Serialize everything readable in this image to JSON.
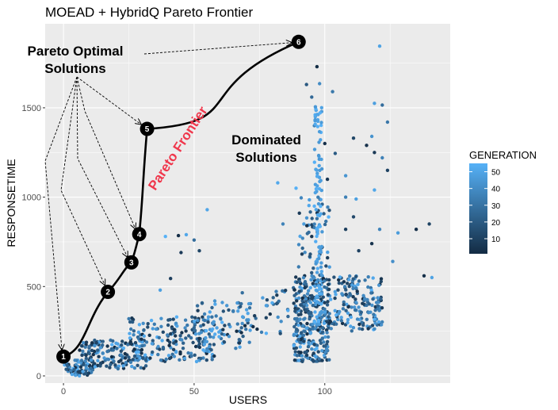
{
  "chart_data": {
    "type": "scatter",
    "title": "MOEAD + HybridQ Pareto Frontier",
    "xlabel": "USERS",
    "ylabel": "RESPONSETIME",
    "xlim": [
      -7,
      148
    ],
    "ylim": [
      -40,
      1970
    ],
    "x_ticks": [
      0,
      50,
      100
    ],
    "y_ticks": [
      0,
      500,
      1000,
      1500
    ],
    "grid": true,
    "legend": {
      "title": "GENERATION",
      "position": "right",
      "ticks": [
        10,
        20,
        30,
        40,
        50
      ],
      "range": [
        1,
        55
      ],
      "color_low": "#132b43",
      "color_high": "#56b1f7"
    },
    "pareto_front": [
      {
        "label": "1",
        "x": 0,
        "y": 108
      },
      {
        "label": "2",
        "x": 17,
        "y": 470
      },
      {
        "label": "3",
        "x": 26,
        "y": 635
      },
      {
        "label": "4",
        "x": 29,
        "y": 793
      },
      {
        "label": "5",
        "x": 32,
        "y": 1382
      },
      {
        "label": "6",
        "x": 90,
        "y": 1869
      }
    ],
    "annotations": {
      "pareto_optimal": [
        "Pareto Optimal",
        "Solutions"
      ],
      "dominated": [
        "Dominated",
        "Solutions"
      ],
      "frontier": "Pareto Frontier"
    },
    "extra_points": [
      [
        121,
        1845
      ],
      [
        97,
        1730
      ],
      [
        98,
        1635
      ],
      [
        93,
        1630
      ],
      [
        95,
        1560
      ],
      [
        103,
        1590
      ],
      [
        119,
        1525
      ],
      [
        122,
        1515
      ],
      [
        124,
        1420
      ],
      [
        111,
        1330
      ],
      [
        96,
        1400
      ],
      [
        118,
        1340
      ],
      [
        100,
        1300
      ],
      [
        116,
        1290
      ],
      [
        119,
        1250
      ],
      [
        124,
        1150
      ],
      [
        104,
        1245
      ],
      [
        122,
        1220
      ],
      [
        108,
        1120
      ],
      [
        101,
        1100
      ],
      [
        82,
        1080
      ],
      [
        119,
        1040
      ],
      [
        108,
        1000
      ],
      [
        89,
        1050
      ],
      [
        112,
        990
      ],
      [
        99,
        960
      ],
      [
        111,
        890
      ],
      [
        55,
        930
      ],
      [
        84,
        850
      ],
      [
        92,
        850
      ],
      [
        108,
        820
      ],
      [
        140,
        850
      ],
      [
        135,
        820
      ],
      [
        121,
        820
      ],
      [
        128,
        800
      ],
      [
        50,
        760
      ],
      [
        44,
        785
      ],
      [
        47,
        790
      ],
      [
        39,
        780
      ],
      [
        52,
        700
      ],
      [
        45,
        690
      ],
      [
        118,
        740
      ],
      [
        113,
        700
      ],
      [
        126,
        640
      ],
      [
        138,
        560
      ],
      [
        141,
        550
      ],
      [
        37,
        480
      ],
      [
        41,
        545
      ],
      [
        95,
        780
      ],
      [
        96,
        830
      ],
      [
        97,
        880
      ],
      [
        99,
        720
      ],
      [
        90,
        610
      ]
    ],
    "cloud": [
      {
        "x": [
          0,
          12
        ],
        "y": [
          0,
          90
        ],
        "n": 80
      },
      {
        "x": [
          6,
          32
        ],
        "y": [
          40,
          200
        ],
        "n": 160
      },
      {
        "x": [
          25,
          58
        ],
        "y": [
          80,
          330
        ],
        "n": 190
      },
      {
        "x": [
          50,
          72
        ],
        "y": [
          150,
          420
        ],
        "n": 90
      },
      {
        "x": [
          68,
          86
        ],
        "y": [
          220,
          480
        ],
        "n": 35
      },
      {
        "x": [
          88,
          102
        ],
        "y": [
          80,
          560
        ],
        "n": 330
      },
      {
        "x": [
          102,
          122
        ],
        "y": [
          250,
          560
        ],
        "n": 170
      },
      {
        "x": [
          90,
          102
        ],
        "y": [
          560,
          1000
        ],
        "n": 45
      }
    ],
    "column": {
      "x": [
        96,
        99
      ],
      "y": [
        280,
        1510
      ],
      "n": 110
    }
  }
}
